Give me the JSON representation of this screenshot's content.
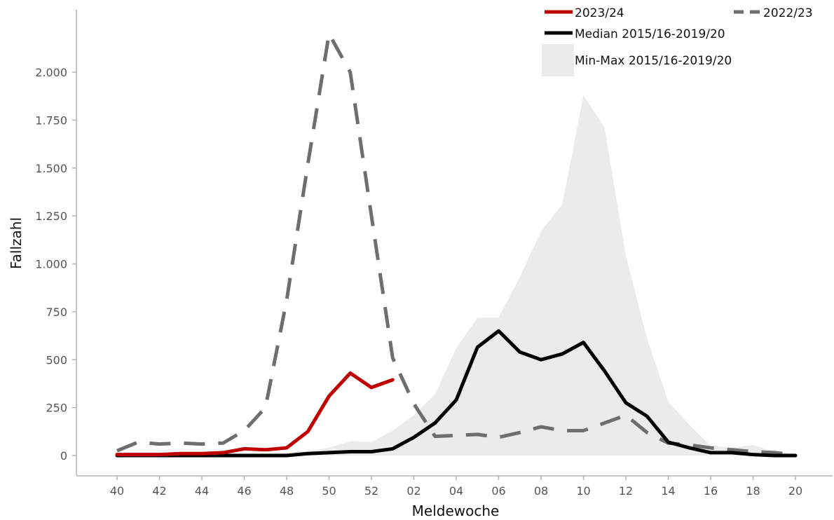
{
  "chart_data": {
    "type": "line",
    "xlabel": "Meldewoche",
    "ylabel": "Fallzahl",
    "ylim": [
      -100,
      2300
    ],
    "yticks": [
      0,
      250,
      500,
      750,
      1000,
      1250,
      1500,
      1750,
      2000
    ],
    "ytick_labels": [
      "0",
      "250",
      "500",
      "750",
      "1.000",
      "1.250",
      "1.500",
      "1.750",
      "2.000"
    ],
    "weeks": [
      "40",
      "41",
      "42",
      "43",
      "44",
      "45",
      "46",
      "47",
      "48",
      "49",
      "50",
      "51",
      "52",
      "01",
      "02",
      "03",
      "04",
      "05",
      "06",
      "07",
      "08",
      "09",
      "10",
      "11",
      "12",
      "13",
      "14",
      "15",
      "16",
      "17",
      "18",
      "19",
      "20"
    ],
    "xtick_labels": [
      "40",
      "42",
      "44",
      "46",
      "48",
      "50",
      "52",
      "02",
      "04",
      "06",
      "08",
      "10",
      "12",
      "14",
      "16",
      "18",
      "20"
    ],
    "legend_position": "top-right",
    "grid": false,
    "band": {
      "name": "Min-Max 2015/16-2019/20",
      "color": "#ebebeb",
      "min": [
        0,
        0,
        0,
        0,
        0,
        0,
        0,
        0,
        0,
        0,
        0,
        0,
        0,
        0,
        0,
        0,
        0,
        0,
        0,
        0,
        0,
        0,
        0,
        0,
        0,
        0,
        0,
        0,
        0,
        0,
        0,
        0,
        0
      ],
      "max": [
        10,
        10,
        10,
        10,
        10,
        10,
        10,
        10,
        15,
        25,
        40,
        75,
        70,
        130,
        210,
        320,
        560,
        720,
        720,
        930,
        1170,
        1310,
        1880,
        1710,
        1040,
        610,
        280,
        160,
        50,
        40,
        55,
        20,
        10
      ]
    },
    "series": [
      {
        "name": "2023/24",
        "color": "#c00000",
        "style": "solid",
        "values": [
          5,
          5,
          5,
          10,
          10,
          15,
          35,
          30,
          40,
          125,
          310,
          430,
          355,
          395
        ]
      },
      {
        "name": "2022/23",
        "color": "#6e6e6e",
        "style": "dashed",
        "values": [
          25,
          70,
          60,
          65,
          60,
          65,
          130,
          250,
          810,
          1520,
          2200,
          2000,
          1250,
          510,
          270,
          100,
          105,
          110,
          95,
          120,
          150,
          130,
          130,
          170,
          210,
          120,
          65,
          55,
          40,
          30,
          20,
          15,
          5
        ]
      },
      {
        "name": "Median 2015/16-2019/20",
        "color": "#000000",
        "style": "solid",
        "values": [
          0,
          0,
          0,
          0,
          0,
          0,
          0,
          0,
          0,
          10,
          15,
          20,
          20,
          35,
          95,
          170,
          290,
          565,
          650,
          540,
          500,
          530,
          590,
          440,
          275,
          205,
          70,
          40,
          15,
          15,
          5,
          0,
          0
        ]
      }
    ]
  }
}
